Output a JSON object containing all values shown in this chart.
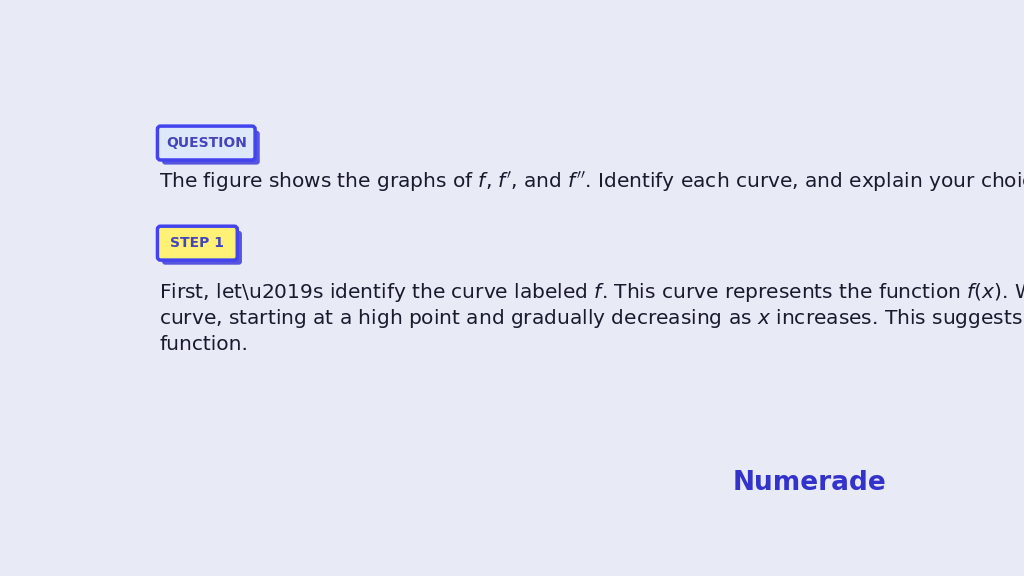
{
  "background_color": "#e8eaf6",
  "question_label": "QUESTION",
  "question_box_fill": "#dde8fb",
  "question_box_edge": "#4444ee",
  "step_label": "STEP 1",
  "step_box_fill": "#fff176",
  "step_box_edge": "#4444ee",
  "shadow_color": "#5555dd",
  "numerade_text": "Numerade",
  "numerade_color": "#3333cc",
  "text_color": "#1a1a2e",
  "label_color": "#4444bb",
  "font_size_label": 10,
  "font_size_body": 14.5
}
